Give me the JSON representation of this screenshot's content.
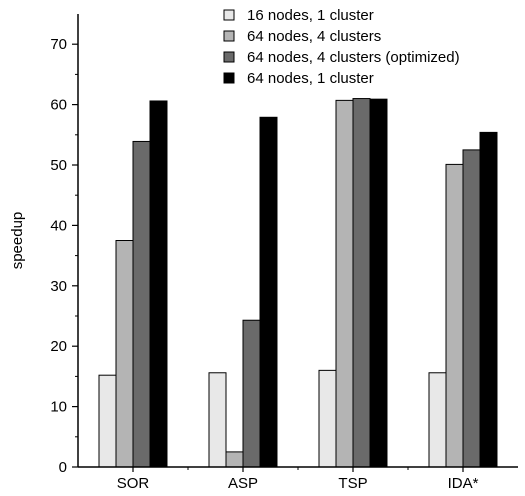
{
  "chart_data": {
    "type": "bar",
    "title": "",
    "xlabel": "",
    "ylabel": "speedup",
    "ylim": [
      0,
      75
    ],
    "yticks": [
      0,
      10,
      20,
      30,
      40,
      50,
      60,
      70
    ],
    "grid": false,
    "legend_position": "top-right",
    "categories": [
      "SOR",
      "ASP",
      "TSP",
      "IDA*"
    ],
    "series": [
      {
        "name": "16 nodes, 1 cluster",
        "color": "#e8e8e8",
        "values": [
          15.2,
          15.6,
          16.0,
          15.6
        ]
      },
      {
        "name": "64 nodes, 4 clusters",
        "color": "#b4b4b4",
        "values": [
          37.5,
          2.5,
          60.7,
          50.1
        ]
      },
      {
        "name": "64 nodes, 4 clusters (optimized)",
        "color": "#6a6a6a",
        "values": [
          53.9,
          24.3,
          61.0,
          52.5
        ]
      },
      {
        "name": "64 nodes, 1 cluster",
        "color": "#000000",
        "values": [
          60.6,
          57.9,
          60.9,
          55.4
        ]
      }
    ]
  }
}
